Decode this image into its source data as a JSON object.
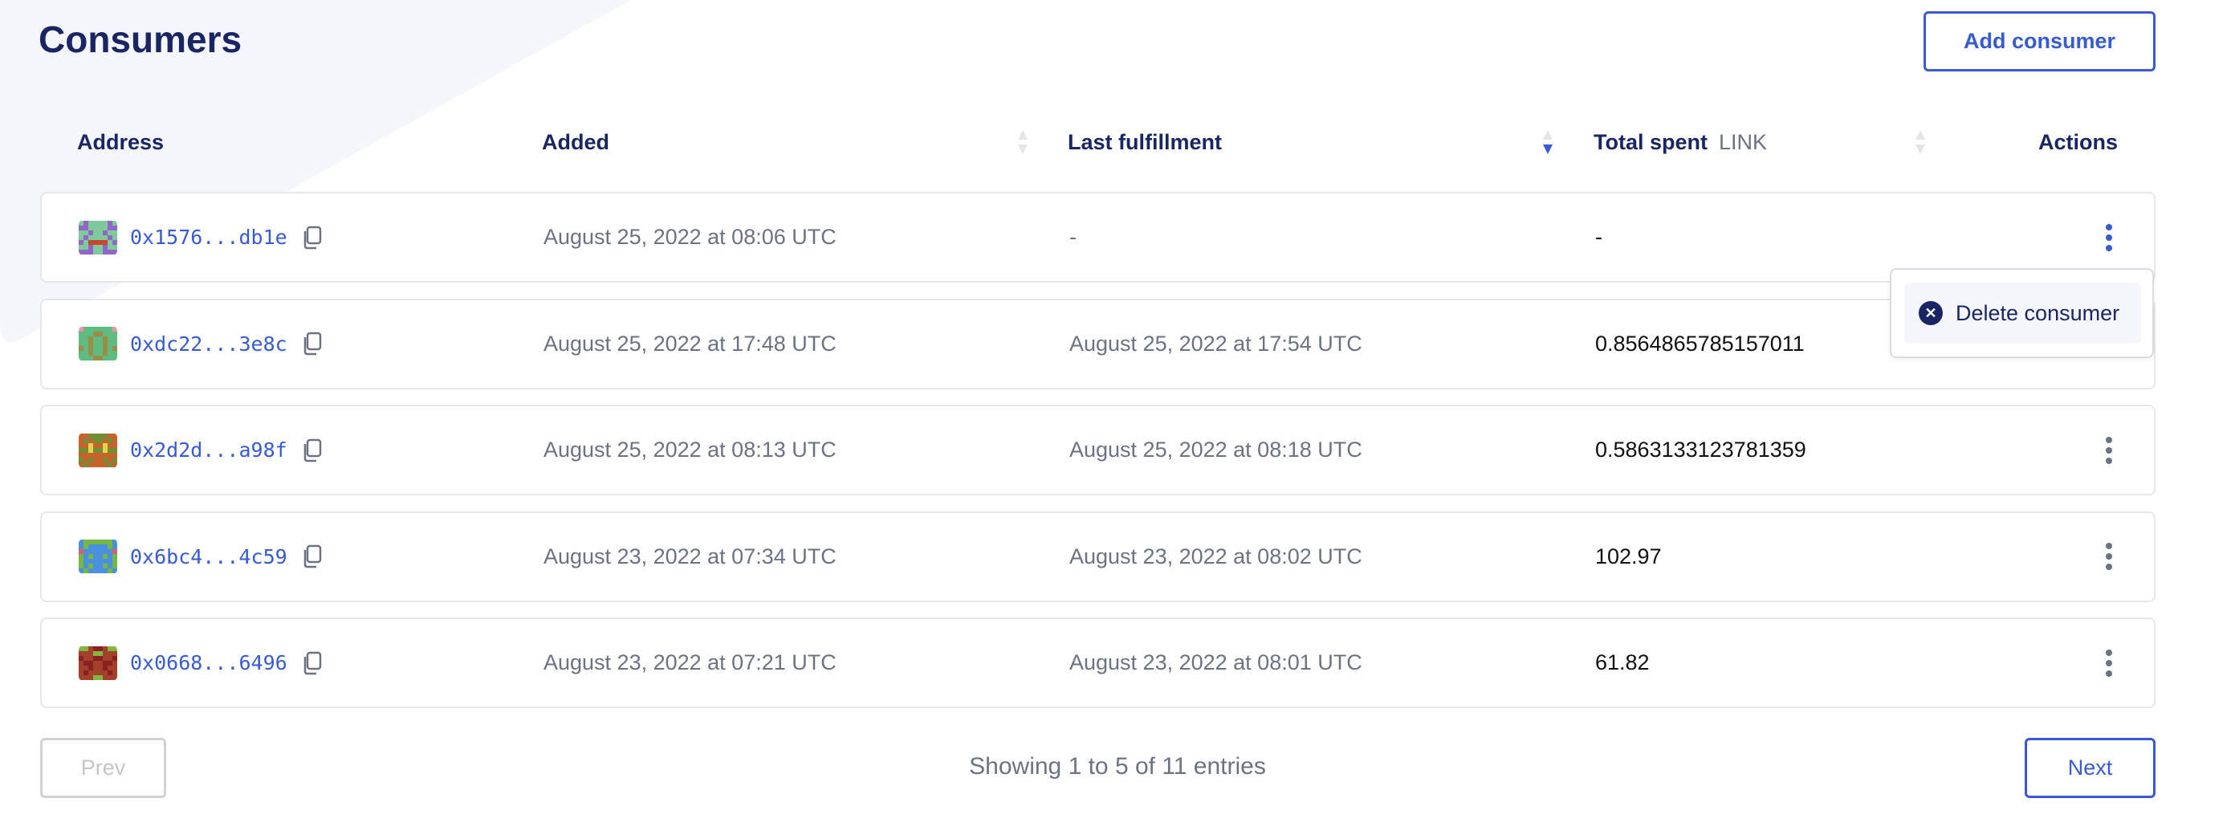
{
  "page": {
    "title": "Consumers",
    "add_button": "Add consumer"
  },
  "colors": {
    "accent": "#375bd2",
    "heading": "#1a2664",
    "muted": "#6b7280",
    "background_shape": "#f5f6fb"
  },
  "table": {
    "columns": [
      {
        "label": "Address",
        "sortable": false
      },
      {
        "label": "Added",
        "sortable": true,
        "sort": "none"
      },
      {
        "label": "Last fulfillment",
        "sortable": true,
        "sort": "descending"
      },
      {
        "label": "Total spent",
        "unit": "LINK",
        "sortable": true,
        "sort": "none"
      },
      {
        "label": "Actions",
        "sortable": false
      }
    ],
    "rows": [
      {
        "address": "0x1576...db1e",
        "added": "August 25, 2022 at 08:06 UTC",
        "last_fulfillment": "-",
        "total_spent": "-",
        "avatar_colors": [
          "#7fc99a",
          "#9165c9",
          "#c8462b"
        ],
        "menu_open": true
      },
      {
        "address": "0xdc22...3e8c",
        "added": "August 25, 2022 at 17:48 UTC",
        "last_fulfillment": "August 25, 2022 at 17:54 UTC",
        "total_spent": "0.8564865785157011",
        "avatar_colors": [
          "#5fbb7f",
          "#9a8d45",
          "#e895a4"
        ]
      },
      {
        "address": "0x2d2d...a98f",
        "added": "August 25, 2022 at 08:13 UTC",
        "last_fulfillment": "August 25, 2022 at 08:18 UTC",
        "total_spent": "0.5863133123781359",
        "avatar_colors": [
          "#c6622a",
          "#6f8f35",
          "#e5d24b"
        ]
      },
      {
        "address": "0x6bc4...4c59",
        "added": "August 23, 2022 at 07:34 UTC",
        "last_fulfillment": "August 23, 2022 at 08:02 UTC",
        "total_spent": "102.97",
        "avatar_colors": [
          "#4a8fe0",
          "#74b843",
          "#d8616b"
        ]
      },
      {
        "address": "0x0668...6496",
        "added": "August 23, 2022 at 07:21 UTC",
        "last_fulfillment": "August 23, 2022 at 08:01 UTC",
        "total_spent": "61.82",
        "avatar_colors": [
          "#a3402a",
          "#8c1f1f",
          "#7fb83f"
        ]
      }
    ]
  },
  "row_menu": {
    "items": [
      {
        "label": "Delete consumer",
        "icon": "close-circle-icon"
      }
    ]
  },
  "pagination": {
    "prev": "Prev",
    "next": "Next",
    "prev_disabled": true,
    "summary": "Showing 1 to 5 of 11 entries"
  }
}
